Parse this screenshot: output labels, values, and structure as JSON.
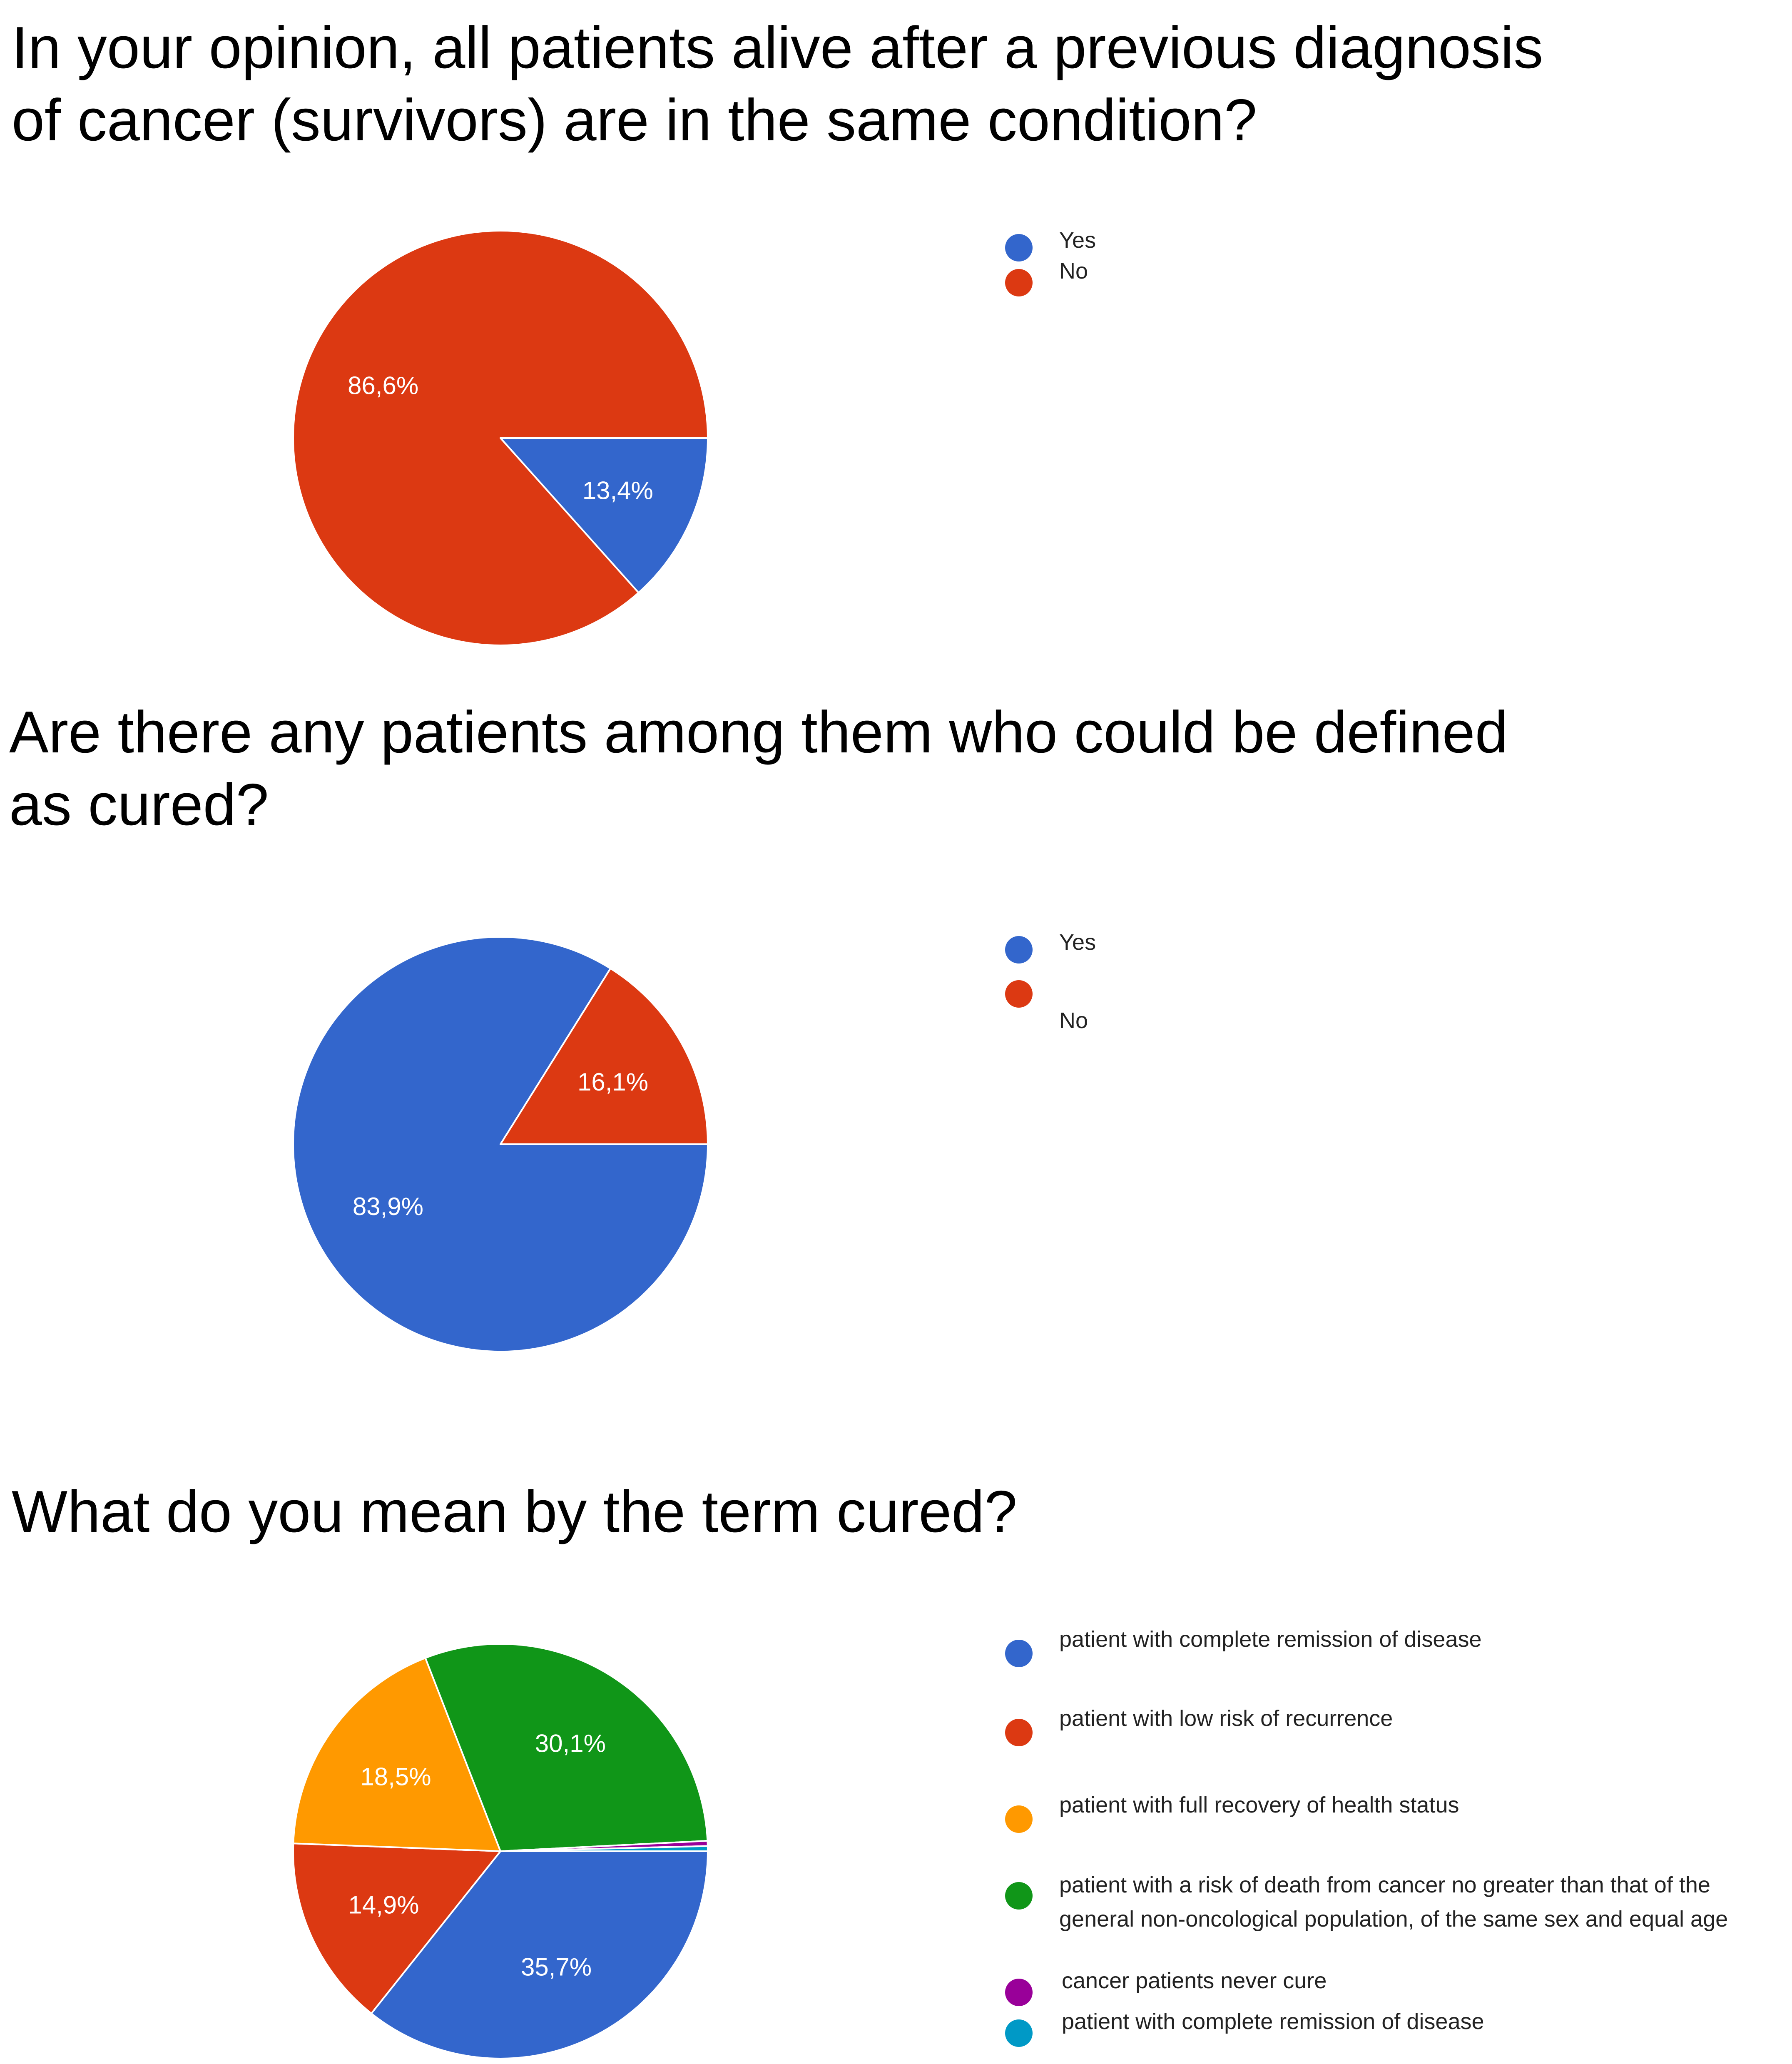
{
  "chart_data": [
    {
      "type": "pie",
      "title": "In your opinion, all patients alive after a previous diagnosis of cancer (survivors) are in the same condition?",
      "title_lines": [
        "In your opinion, all patients alive after a previous diagnosis",
        "of cancer (survivors) are in the same condition?"
      ],
      "legend_position": "right",
      "slices": [
        {
          "label": "Yes",
          "value": 13.4,
          "value_label": "13,4%",
          "color": "#3366cc"
        },
        {
          "label": "No",
          "value": 86.6,
          "value_label": "86,6%",
          "color": "#dc3912"
        }
      ]
    },
    {
      "type": "pie",
      "title": "Are there any patients among them who could be defined as cured?",
      "title_lines": [
        "Are there any patients among them who could be defined",
        "as cured?"
      ],
      "legend_position": "right",
      "slices": [
        {
          "label": "Yes",
          "value": 83.9,
          "value_label": "83,9%",
          "color": "#3366cc"
        },
        {
          "label": "No",
          "value": 16.1,
          "value_label": "16,1%",
          "color": "#dc3912"
        }
      ]
    },
    {
      "type": "pie",
      "title": "What do you mean by the term cured?",
      "title_lines": [
        "What do you mean by the term cured?"
      ],
      "legend_position": "right",
      "slices": [
        {
          "label": "patient with complete remission of disease",
          "value": 35.7,
          "value_label": "35,7%",
          "color": "#3366cc"
        },
        {
          "label": "patient with low risk of recurrence",
          "value": 14.9,
          "value_label": "14,9%",
          "color": "#dc3912"
        },
        {
          "label": "patient with full recovery of health status",
          "value": 18.5,
          "value_label": "18,5%",
          "color": "#ff9900"
        },
        {
          "label": "patient with a risk of death from cancer no greater than that of the general non-oncological population, of the same sex and equal age",
          "label_lines": [
            "patient with a risk of death from cancer no greater than that of the",
            "general non-oncological population, of the same sex and equal age"
          ],
          "value": 30.1,
          "value_label": "30,1%",
          "color": "#109618"
        },
        {
          "label": "cancer patients never cure",
          "value": 0.4,
          "value_label": "",
          "color": "#990099"
        },
        {
          "label": "patient with complete remission of disease",
          "value": 0.4,
          "value_label": "",
          "color": "#0099c6"
        }
      ]
    }
  ]
}
